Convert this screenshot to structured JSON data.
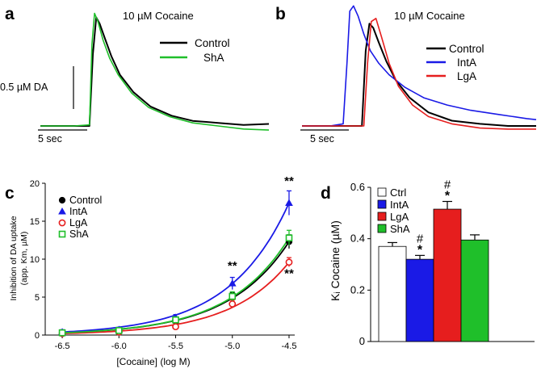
{
  "figure": {
    "panel_letters": [
      "a",
      "b",
      "c",
      "d"
    ]
  },
  "chart_data": [
    {
      "panel": "a",
      "type": "line",
      "title": "10 µM Cocaine",
      "scale_bar_y": "0.5 µM DA",
      "scale_bar_x": "5 sec",
      "legend": [
        "Control",
        "ShA"
      ],
      "colors": [
        "#000000",
        "#1fbf2a"
      ],
      "x_unit": "sec",
      "y_unit": "µM DA",
      "series": [
        {
          "name": "Control",
          "x": [
            0,
            4,
            5.8,
            6.2,
            6.6,
            7.0,
            7.6,
            8.4,
            9.4,
            11,
            13,
            15.5,
            18,
            21,
            24,
            27
          ],
          "y": [
            0,
            0,
            0,
            0.7,
            1.06,
            1.0,
            0.86,
            0.68,
            0.5,
            0.33,
            0.19,
            0.1,
            0.05,
            0.03,
            0.01,
            0.02
          ]
        },
        {
          "name": "ShA",
          "x": [
            0,
            4,
            5.8,
            6.1,
            6.4,
            6.8,
            7.4,
            8.2,
            9.2,
            10.8,
            12.8,
            15.3,
            18,
            21,
            24,
            27
          ],
          "y": [
            0,
            0,
            0.01,
            0.8,
            1.1,
            1.02,
            0.84,
            0.66,
            0.5,
            0.32,
            0.18,
            0.09,
            0.03,
            0.0,
            -0.03,
            -0.04
          ]
        }
      ]
    },
    {
      "panel": "b",
      "type": "line",
      "title": "10 µM Cocaine",
      "scale_bar_x": "5 sec",
      "legend": [
        "Control",
        "IntA",
        "LgA"
      ],
      "colors": [
        "#000000",
        "#1a1ae6",
        "#e61e1e"
      ],
      "x_unit": "sec",
      "y_unit": "µM DA",
      "series": [
        {
          "name": "Control",
          "x": [
            0,
            5,
            6.4,
            6.8,
            7.2,
            7.6,
            8.2,
            9,
            10,
            11.5,
            13.5,
            16,
            19,
            22,
            25
          ],
          "y": [
            0,
            0,
            0,
            0.72,
            0.98,
            0.94,
            0.8,
            0.62,
            0.44,
            0.27,
            0.13,
            0.05,
            0.02,
            0.0,
            0.0
          ]
        },
        {
          "name": "IntA",
          "x": [
            0,
            3,
            4.4,
            4.8,
            5.1,
            5.5,
            6.0,
            6.6,
            7.3,
            8.2,
            9.3,
            11,
            13,
            15.5,
            18,
            21,
            24,
            25
          ],
          "y": [
            0,
            0.0,
            0.02,
            0.6,
            1.1,
            1.15,
            1.05,
            0.88,
            0.72,
            0.6,
            0.49,
            0.37,
            0.27,
            0.2,
            0.15,
            0.11,
            0.07,
            0.06
          ]
        },
        {
          "name": "LgA",
          "x": [
            0,
            5,
            6.6,
            7.0,
            7.4,
            7.9,
            8.5,
            9.3,
            10.3,
            11.8,
            13.5,
            16,
            19,
            22,
            25
          ],
          "y": [
            0,
            0,
            0,
            0.6,
            1.0,
            1.03,
            0.85,
            0.6,
            0.38,
            0.2,
            0.09,
            0.02,
            -0.02,
            -0.03,
            -0.03
          ]
        }
      ]
    },
    {
      "panel": "c",
      "type": "line",
      "title": "",
      "xlabel": "[Cocaine] (log M)",
      "ylabel": [
        "Inhibition of DA uptake",
        "(app. Km, µM)"
      ],
      "xlim": [
        -6.65,
        -4.45
      ],
      "ylim": [
        0,
        20
      ],
      "x_ticks": [
        -6.5,
        -6.0,
        -5.5,
        -5.0,
        -4.5
      ],
      "x_tick_labels": [
        "-6.5",
        "-6.0",
        "-5.5",
        "-5.0",
        "-4.5"
      ],
      "y_ticks": [
        0,
        5,
        10,
        15,
        20
      ],
      "y_tick_labels": [
        "0",
        "5",
        "10",
        "15",
        "20"
      ],
      "legend": [
        "Control",
        "IntA",
        "LgA",
        "ShA"
      ],
      "legend_position": "top-left",
      "annotations": [
        {
          "text": "**",
          "x": -5.0,
          "y": 8.6
        },
        {
          "text": "**",
          "x": -4.5,
          "y": 19.8
        },
        {
          "text": "**",
          "x": -4.5,
          "y": 7.6
        }
      ],
      "series": [
        {
          "name": "Control",
          "color": "#000000",
          "marker": "circle-filled",
          "x": [
            -6.5,
            -6.0,
            -5.5,
            -5.0,
            -4.5
          ],
          "y": [
            0.3,
            0.6,
            1.8,
            5.0,
            12.3
          ],
          "err": [
            0.3,
            0.3,
            0.4,
            0.6,
            0.9
          ]
        },
        {
          "name": "IntA",
          "color": "#1a1ae6",
          "marker": "triangle",
          "x": [
            -6.5,
            -6.0,
            -5.5,
            -5.0,
            -4.5
          ],
          "y": [
            0.4,
            0.7,
            2.3,
            6.8,
            17.4
          ],
          "err": [
            0.3,
            0.3,
            0.4,
            0.8,
            1.6
          ]
        },
        {
          "name": "LgA",
          "color": "#e61e1e",
          "marker": "circle-open",
          "x": [
            -6.5,
            -6.0,
            -5.5,
            -5.0,
            -4.5
          ],
          "y": [
            0.2,
            0.4,
            1.1,
            4.1,
            9.6
          ],
          "err": [
            0.2,
            0.2,
            0.3,
            0.5,
            0.6
          ]
        },
        {
          "name": "ShA",
          "color": "#1fbf2a",
          "marker": "square-open",
          "x": [
            -6.5,
            -6.0,
            -5.5,
            -5.0,
            -4.5
          ],
          "y": [
            0.3,
            0.6,
            2.0,
            5.1,
            12.8
          ],
          "err": [
            0.3,
            0.3,
            0.4,
            0.6,
            1.0
          ]
        }
      ]
    },
    {
      "panel": "d",
      "type": "bar",
      "title": "",
      "ylabel": "Kᵢ Cocaine (µM)",
      "ylim": [
        0,
        0.6
      ],
      "y_ticks": [
        0,
        0.2,
        0.4,
        0.6
      ],
      "y_tick_labels": [
        "0",
        "0.2",
        "0.4",
        "0.6"
      ],
      "categories": [
        "Ctrl",
        "IntA",
        "LgA",
        "ShA"
      ],
      "values": [
        0.37,
        0.32,
        0.515,
        0.395
      ],
      "errors": [
        0.015,
        0.015,
        0.03,
        0.02
      ],
      "colors": [
        "#ffffff",
        "#1a1ae6",
        "#e61e1e",
        "#1fbf2a"
      ],
      "legend": [
        "Ctrl",
        "IntA",
        "LgA",
        "ShA"
      ],
      "legend_position": "top-left",
      "annotations": [
        {
          "category": "IntA",
          "text": [
            "#",
            "*"
          ]
        },
        {
          "category": "LgA",
          "text": [
            "#",
            "*"
          ]
        }
      ]
    }
  ]
}
